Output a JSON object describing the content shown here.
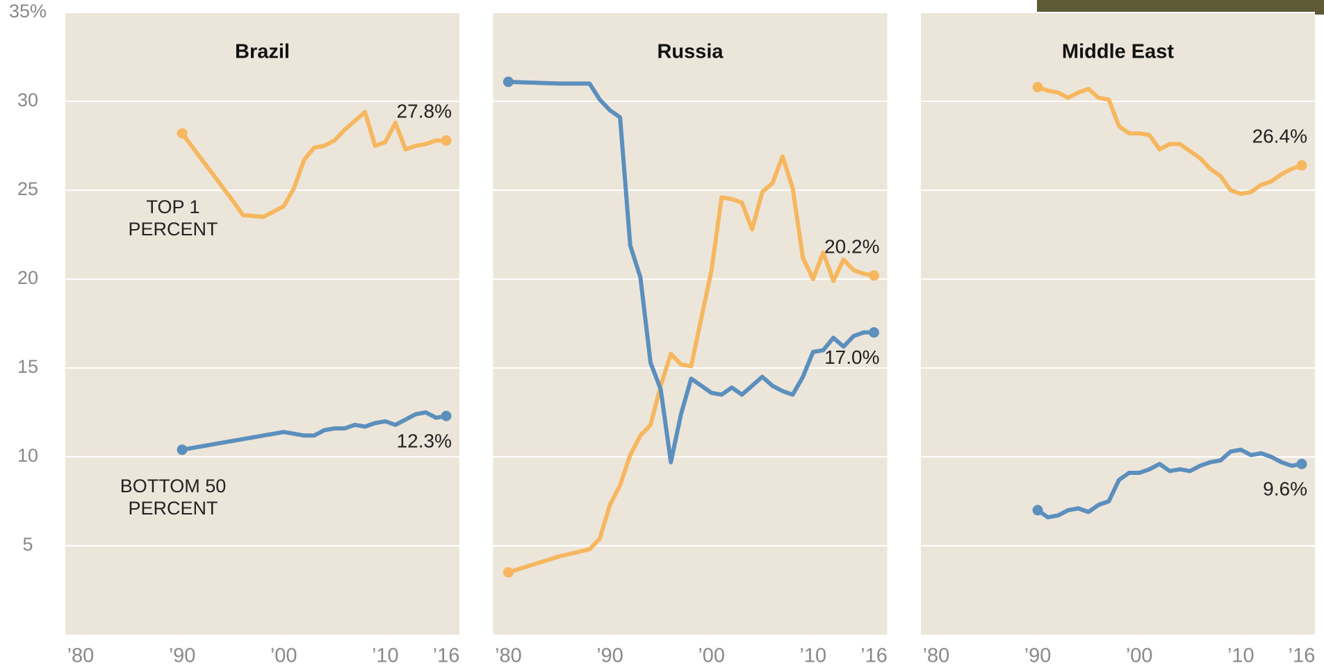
{
  "chart_data": [
    {
      "type": "line",
      "title": "Brazil",
      "ylim": [
        0,
        35
      ],
      "xlim": [
        1978.5,
        2017.3
      ],
      "yticks": [
        5,
        10,
        15,
        20,
        25,
        30,
        {
          "value": 35,
          "label": "35%"
        }
      ],
      "grid": true,
      "xticks": [
        {
          "value": 1980,
          "label": "’80"
        },
        {
          "value": 1990,
          "label": "’90"
        },
        {
          "value": 2000,
          "label": "’00"
        },
        {
          "value": 2010,
          "label": "’10"
        },
        {
          "value": 2016,
          "label": "’16"
        }
      ],
      "x": [
        1990,
        1995,
        1996,
        1998,
        2000,
        2001,
        2002,
        2003,
        2004,
        2005,
        2006,
        2007,
        2008,
        2009,
        2010,
        2011,
        2012,
        2013,
        2014,
        2015,
        2016
      ],
      "series": [
        {
          "name": "TOP 1 PERCENT",
          "color": "#f6b75f",
          "values": [
            28.2,
            24.4,
            23.6,
            23.5,
            24.1,
            25.1,
            26.7,
            27.4,
            27.5,
            27.8,
            28.4,
            28.9,
            29.4,
            27.5,
            27.7,
            28.8,
            27.3,
            27.5,
            27.6,
            27.8,
            27.8
          ],
          "value_labels": [
            null,
            null,
            null,
            null,
            null,
            null,
            null,
            null,
            null,
            null,
            null,
            null,
            null,
            null,
            null,
            null,
            null,
            null,
            null,
            null,
            "27.8%"
          ]
        },
        {
          "name": "BOTTOM 50 PERCENT",
          "color": "#5b8fbd",
          "values": [
            10.4,
            10.9,
            11.0,
            11.2,
            11.4,
            11.3,
            11.2,
            11.2,
            11.5,
            11.6,
            11.6,
            11.8,
            11.7,
            11.9,
            12.0,
            11.8,
            12.1,
            12.4,
            12.5,
            12.2,
            12.3
          ],
          "value_labels": [
            null,
            null,
            null,
            null,
            null,
            null,
            null,
            null,
            null,
            null,
            null,
            null,
            null,
            null,
            null,
            null,
            null,
            null,
            null,
            null,
            "12.3%"
          ]
        }
      ]
    },
    {
      "type": "line",
      "title": "Russia",
      "ylim": [
        0,
        35
      ],
      "xlim": [
        1978.5,
        2017.3
      ],
      "xticks": [
        {
          "value": 1980,
          "label": "’80"
        },
        {
          "value": 1990,
          "label": "’90"
        },
        {
          "value": 2000,
          "label": "’00"
        },
        {
          "value": 2010,
          "label": "’10"
        },
        {
          "value": 2016,
          "label": "’16"
        }
      ],
      "x": [
        1980,
        1985,
        1988,
        1989,
        1990,
        1991,
        1992,
        1993,
        1994,
        1995,
        1996,
        1997,
        1998,
        1999,
        2000,
        2001,
        2002,
        2003,
        2004,
        2005,
        2006,
        2007,
        2008,
        2009,
        2010,
        2011,
        2012,
        2013,
        2014,
        2015,
        2016
      ],
      "series": [
        {
          "color": "#f6b75f",
          "values": [
            3.5,
            4.4,
            4.8,
            5.4,
            7.3,
            8.4,
            10.1,
            11.2,
            11.8,
            14.0,
            15.8,
            15.2,
            15.1,
            17.8,
            20.5,
            24.6,
            24.5,
            24.3,
            22.8,
            24.9,
            25.4,
            26.9,
            25.1,
            21.2,
            20.0,
            21.5,
            19.9,
            21.1,
            20.5,
            20.3,
            20.2
          ],
          "value_labels": [
            null,
            null,
            null,
            null,
            null,
            null,
            null,
            null,
            null,
            null,
            null,
            null,
            null,
            null,
            null,
            null,
            null,
            null,
            null,
            null,
            null,
            null,
            null,
            null,
            null,
            null,
            null,
            null,
            null,
            null,
            "20.2%"
          ]
        },
        {
          "color": "#5b8fbd",
          "values": [
            31.1,
            31.0,
            31.0,
            30.1,
            29.5,
            29.1,
            21.9,
            20.1,
            15.3,
            13.8,
            9.7,
            12.4,
            14.4,
            14.0,
            13.6,
            13.5,
            13.9,
            13.5,
            14.0,
            14.5,
            14.0,
            13.7,
            13.5,
            14.5,
            15.9,
            16.0,
            16.7,
            16.2,
            16.8,
            17.0,
            17.0
          ],
          "value_labels": [
            null,
            null,
            null,
            null,
            null,
            null,
            null,
            null,
            null,
            null,
            null,
            null,
            null,
            null,
            null,
            null,
            null,
            null,
            null,
            null,
            null,
            null,
            null,
            null,
            null,
            null,
            null,
            null,
            null,
            null,
            "17.0%"
          ]
        }
      ]
    },
    {
      "type": "line",
      "title": "Middle East",
      "ylim": [
        0,
        35
      ],
      "xlim": [
        1978.5,
        2017.3
      ],
      "xticks": [
        {
          "value": 1980,
          "label": "’80"
        },
        {
          "value": 1990,
          "label": "’90"
        },
        {
          "value": 2000,
          "label": "’00"
        },
        {
          "value": 2010,
          "label": "’10"
        },
        {
          "value": 2016,
          "label": "’16"
        }
      ],
      "x": [
        1990,
        1991,
        1992,
        1993,
        1994,
        1995,
        1996,
        1997,
        1998,
        1999,
        2000,
        2001,
        2002,
        2003,
        2004,
        2005,
        2006,
        2007,
        2008,
        2009,
        2010,
        2011,
        2012,
        2013,
        2014,
        2015,
        2016
      ],
      "series": [
        {
          "color": "#f6b75f",
          "values": [
            30.8,
            30.6,
            30.5,
            30.2,
            30.5,
            30.7,
            30.2,
            30.1,
            28.6,
            28.2,
            28.2,
            28.1,
            27.3,
            27.6,
            27.6,
            27.2,
            26.8,
            26.2,
            25.8,
            25.0,
            24.8,
            24.9,
            25.3,
            25.5,
            25.9,
            26.2,
            26.4
          ],
          "value_labels": [
            null,
            null,
            null,
            null,
            null,
            null,
            null,
            null,
            null,
            null,
            null,
            null,
            null,
            null,
            null,
            null,
            null,
            null,
            null,
            null,
            null,
            null,
            null,
            null,
            null,
            null,
            "26.4%"
          ]
        },
        {
          "color": "#5b8fbd",
          "values": [
            7.0,
            6.6,
            6.7,
            7.0,
            7.1,
            6.9,
            7.3,
            7.5,
            8.7,
            9.1,
            9.1,
            9.3,
            9.6,
            9.2,
            9.3,
            9.2,
            9.5,
            9.7,
            9.8,
            10.3,
            10.4,
            10.1,
            10.2,
            10.0,
            9.7,
            9.5,
            9.6
          ],
          "value_labels": [
            null,
            null,
            null,
            null,
            null,
            null,
            null,
            null,
            null,
            null,
            null,
            null,
            null,
            null,
            null,
            null,
            null,
            null,
            null,
            null,
            null,
            null,
            null,
            null,
            null,
            null,
            "9.6%"
          ]
        }
      ]
    }
  ]
}
